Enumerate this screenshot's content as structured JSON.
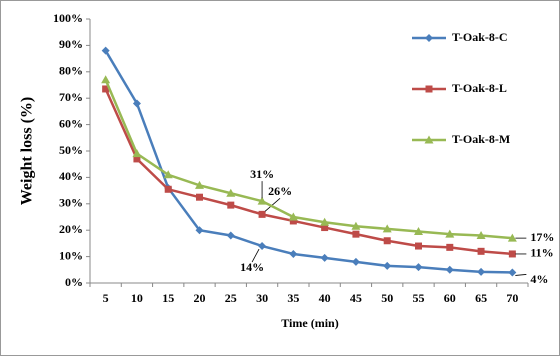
{
  "chart_data": {
    "type": "line",
    "y_label": "Weight loss (%)",
    "x_label": "Time (min)",
    "categories": [
      "5",
      "10",
      "15",
      "20",
      "25",
      "30",
      "35",
      "40",
      "45",
      "50",
      "55",
      "60",
      "65",
      "70"
    ],
    "ylim": [
      0,
      100
    ],
    "yticks": [
      {
        "value": 0,
        "label": "0%"
      },
      {
        "value": 10,
        "label": "10%"
      },
      {
        "value": 20,
        "label": "20%"
      },
      {
        "value": 30,
        "label": "30%"
      },
      {
        "value": 40,
        "label": "40%"
      },
      {
        "value": 50,
        "label": "50%"
      },
      {
        "value": 60,
        "label": "60%"
      },
      {
        "value": 70,
        "label": "70%"
      },
      {
        "value": 80,
        "label": "80%"
      },
      {
        "value": 90,
        "label": "90%"
      },
      {
        "value": 100,
        "label": "100%"
      }
    ],
    "grid": false,
    "legend": "right",
    "series": [
      {
        "name": "T-Oak-8-C",
        "color": "#4a7ebb",
        "marker": "diamond",
        "values": [
          88,
          68,
          36,
          20,
          18,
          14,
          11,
          9.5,
          8,
          6.5,
          6,
          5,
          4.2,
          4
        ],
        "value_labels": [
          null,
          null,
          null,
          null,
          null,
          "14%",
          null,
          null,
          null,
          null,
          null,
          null,
          null,
          "4%"
        ]
      },
      {
        "name": "T-Oak-8-L",
        "color": "#be4b48",
        "marker": "square",
        "values": [
          73.5,
          47,
          35.5,
          32.5,
          29.5,
          26,
          23.5,
          21,
          18.5,
          16,
          14,
          13.5,
          12,
          11
        ],
        "value_labels": [
          null,
          null,
          null,
          null,
          null,
          "26%",
          null,
          null,
          null,
          null,
          null,
          null,
          null,
          "11%"
        ]
      },
      {
        "name": "T-Oak-8-M",
        "color": "#98b954",
        "marker": "triangle",
        "values": [
          77,
          49,
          41,
          37,
          34,
          31,
          25,
          23,
          21.5,
          20.5,
          19.5,
          18.5,
          18,
          17
        ],
        "value_labels": [
          null,
          null,
          null,
          null,
          null,
          "31%",
          null,
          null,
          null,
          null,
          null,
          null,
          null,
          "17%"
        ]
      }
    ]
  }
}
